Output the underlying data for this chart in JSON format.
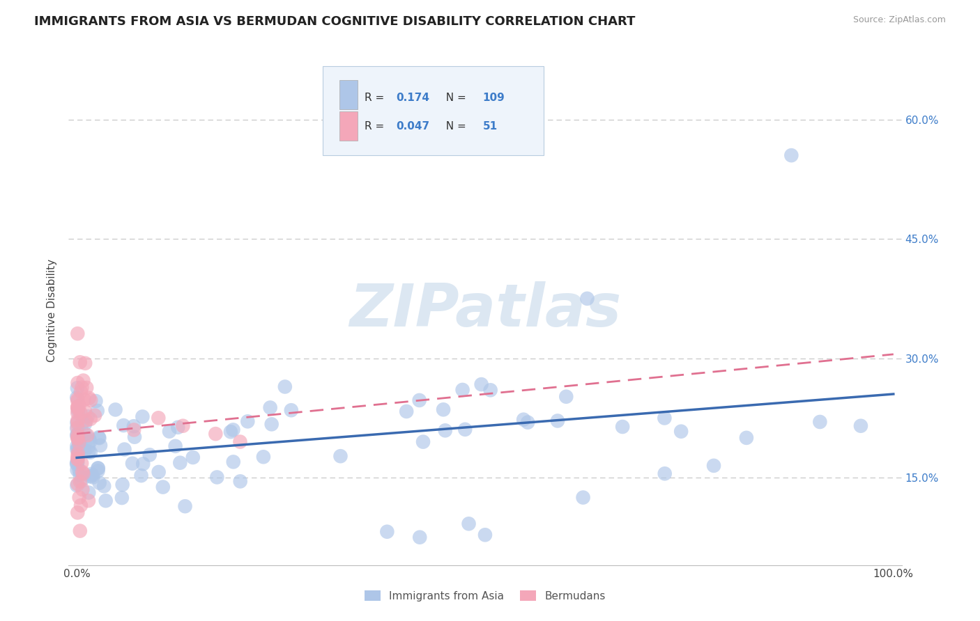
{
  "title": "IMMIGRANTS FROM ASIA VS BERMUDAN COGNITIVE DISABILITY CORRELATION CHART",
  "source": "Source: ZipAtlas.com",
  "ylabel": "Cognitive Disability",
  "y_tick_vals": [
    0.15,
    0.3,
    0.45,
    0.6
  ],
  "y_tick_labels_right": [
    "15.0%",
    "30.0%",
    "45.0%",
    "60.0%"
  ],
  "legend_items": [
    {
      "label": "Immigrants from Asia",
      "color": "#aec6e8",
      "R": "0.174",
      "N": "109"
    },
    {
      "label": "Bermudans",
      "color": "#f4a7b9",
      "R": "0.047",
      "N": "51"
    }
  ],
  "legend_R_color": "#3d7cc9",
  "watermark_text": "ZIPatlas",
  "watermark_color": "#c5d8ea",
  "background_color": "#ffffff",
  "grid_color": "#c8c8c8",
  "scatter_blue_color": "#aec6e8",
  "scatter_pink_color": "#f4a7b9",
  "line_blue_color": "#3a6ab0",
  "line_pink_color": "#e07090",
  "title_fontsize": 13,
  "legend_bg_color": "#eef4fb",
  "legend_border_color": "#b8cde0",
  "seed": 99,
  "blue_N": 109,
  "pink_N": 51,
  "ylim_min": 0.04,
  "ylim_max": 0.68,
  "xlim_min": -0.01,
  "xlim_max": 1.01,
  "blue_line_x0": 0.0,
  "blue_line_y0": 0.175,
  "blue_line_x1": 1.0,
  "blue_line_y1": 0.255,
  "pink_line_x0": 0.0,
  "pink_line_y0": 0.205,
  "pink_line_x1": 1.0,
  "pink_line_y1": 0.305
}
